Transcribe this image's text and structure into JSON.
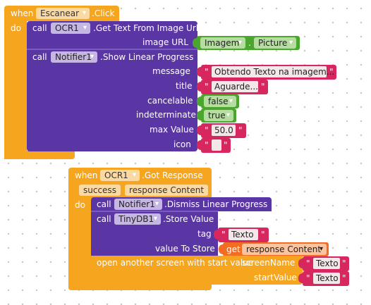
{
  "event1": {
    "when": "when",
    "component": "Escanear",
    "event": ".Click",
    "do": "do",
    "ocr_call": {
      "call": "call",
      "component": "OCR1",
      "method": ".Get Text From Image Url",
      "param": "image URL",
      "arg_component": "Imagem",
      "arg_property": "Picture"
    },
    "progress_call": {
      "call": "call",
      "component": "Notifier1",
      "method": ".Show Linear Progress",
      "params": {
        "message": "message",
        "title": "title",
        "cancelable": "cancelable",
        "indeterminate": "indeterminate",
        "maxValue": "max Value",
        "icon": "icon"
      },
      "values": {
        "message": "Obtendo Texto na imagem...",
        "title": "Aguarde...",
        "cancelable": "false",
        "indeterminate": "true",
        "maxValue": "50.0",
        "icon": ""
      }
    }
  },
  "event2": {
    "when": "when",
    "component": "OCR1",
    "event": ".Got Response",
    "params": [
      "success",
      "response Content"
    ],
    "do": "do",
    "dismiss_call": {
      "call": "call",
      "component": "Notifier1",
      "method": ".Dismiss Linear Progress"
    },
    "store_call": {
      "call": "call",
      "component": "TinyDB1",
      "method": ".Store Value",
      "tag_label": "tag",
      "tag_value": "Texto",
      "value_label": "value To Store",
      "get": "get",
      "get_var": "response Content"
    },
    "open_screen": {
      "label": "open another screen with start value",
      "screen_label": "screenName",
      "screen_value": "Texto",
      "start_label": "startValue",
      "start_value": "Texto"
    }
  },
  "quote": "\""
}
